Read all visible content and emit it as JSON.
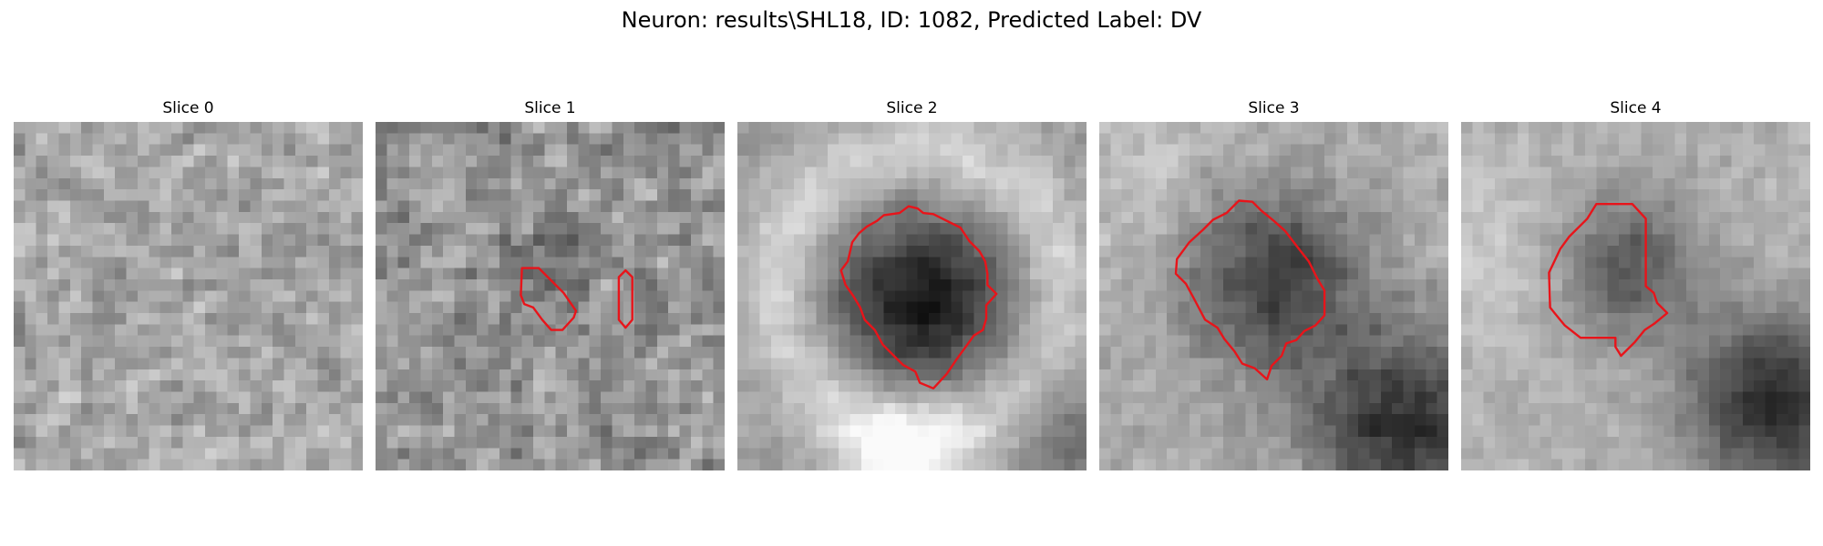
{
  "figure": {
    "title": "Neuron: results\\SHL18, ID: 1082, Predicted Label: DV",
    "outline_color": "#e8141a"
  },
  "panels": [
    {
      "title": "Slice 0"
    },
    {
      "title": "Slice 1"
    },
    {
      "title": "Slice 2"
    },
    {
      "title": "Slice 3"
    },
    {
      "title": "Slice 4"
    }
  ]
}
